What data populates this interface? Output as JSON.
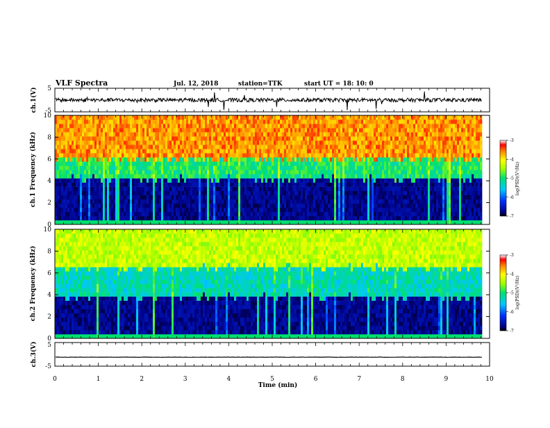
{
  "header": {
    "title": "VLF Spectra",
    "date": "Jul. 12, 2018",
    "station": "station=TTK",
    "start": "start  UT  =   18: 10: 0"
  },
  "chart_data": [
    {
      "type": "line",
      "panel": "ch1-waveform",
      "ylabel": "ch.1(V)",
      "xlim": [
        0,
        10
      ],
      "ylim": [
        -5,
        5
      ],
      "yticks": [
        "5",
        "-5"
      ],
      "baseline": 0,
      "data_end_min": 9.83,
      "color": "#000000"
    },
    {
      "type": "heatmap",
      "panel": "ch1-spectrogram",
      "ylabel": "ch.1  Frequency  (kHz)",
      "xlim": [
        0,
        10
      ],
      "ylim": [
        0,
        10
      ],
      "yticks": [
        "0",
        "2",
        "4",
        "6",
        "8",
        "10"
      ],
      "data_end_min": 9.83,
      "colorbar": {
        "label": "log(PSD)(V²/Hz)",
        "range": [
          -7,
          -3
        ],
        "ticks": [
          "-3",
          "-4",
          "-5",
          "-6",
          "-7"
        ]
      },
      "profile": {
        "low_band_khz": [
          0,
          4.2
        ],
        "low_band_logpsd": -6.9,
        "mid_band_khz": [
          4.2,
          6.0
        ],
        "mid_band_logpsd": -5.0,
        "high_band_khz": [
          6.0,
          10
        ],
        "high_band_logpsd": -3.6
      }
    },
    {
      "type": "heatmap",
      "panel": "ch2-spectrogram",
      "ylabel": "ch.2  Frequency  (kHz)",
      "xlim": [
        0,
        10
      ],
      "ylim": [
        0,
        10
      ],
      "yticks": [
        "0",
        "2",
        "4",
        "6",
        "8",
        "10"
      ],
      "data_end_min": 9.83,
      "colorbar": {
        "label": "log(PSD)(V²/Hz)",
        "range": [
          -7,
          -3
        ],
        "ticks": [
          "-3",
          "-4",
          "-5",
          "-6",
          "-7"
        ]
      },
      "profile": {
        "low_band_khz": [
          0,
          3.8
        ],
        "low_band_logpsd": -6.9,
        "mid_band_khz": [
          3.8,
          6.5
        ],
        "mid_band_logpsd": -5.3,
        "high_band_khz": [
          6.5,
          10
        ],
        "high_band_logpsd": -4.3
      }
    },
    {
      "type": "line",
      "panel": "ch3-waveform",
      "ylabel": "ch.3(V)",
      "xlim": [
        0,
        10
      ],
      "ylim": [
        -5,
        5
      ],
      "yticks": [
        "5",
        "-5"
      ],
      "baseline": -1.2,
      "data_end_min": 9.83,
      "color": "#000000"
    }
  ],
  "xaxis": {
    "label": "Time  (min)",
    "ticks": [
      "0",
      "1",
      "2",
      "3",
      "4",
      "5",
      "6",
      "7",
      "8",
      "9",
      "10"
    ]
  }
}
